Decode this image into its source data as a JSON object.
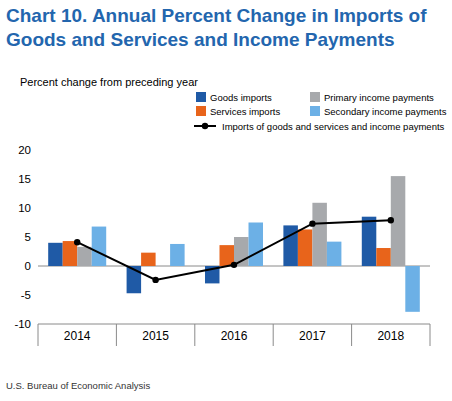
{
  "chart_data": {
    "type": "bar",
    "title": "Chart 10. Annual Percent Change in Imports of Goods and Services and Income Payments",
    "y_label": "Percent change from preceding year",
    "source": "U.S. Bureau of Economic Analysis",
    "categories": [
      "2014",
      "2015",
      "2016",
      "2017",
      "2018"
    ],
    "series": [
      {
        "name": "Goods imports",
        "color": "#1f5aa6",
        "values": [
          4.0,
          -4.7,
          -3.0,
          7.0,
          8.5
        ]
      },
      {
        "name": "Services imports",
        "color": "#e8641b",
        "values": [
          4.3,
          2.3,
          3.6,
          6.3,
          3.1
        ]
      },
      {
        "name": "Primary income payments",
        "color": "#a7a9ac",
        "values": [
          3.3,
          0.0,
          5.0,
          10.9,
          15.5
        ]
      },
      {
        "name": "Secondary income payments",
        "color": "#6cb0e6",
        "values": [
          6.8,
          3.8,
          7.5,
          4.2,
          -7.9
        ]
      },
      {
        "name": "Imports of goods and services and income payments",
        "color": "#000000",
        "type": "line",
        "marker": "circle",
        "values": [
          4.1,
          -2.4,
          0.2,
          7.3,
          7.9
        ]
      }
    ],
    "ylim": [
      -10,
      20
    ],
    "yticks": [
      -10,
      -5,
      0,
      5,
      10,
      15,
      20
    ],
    "grid": false,
    "legend": "top-right"
  }
}
